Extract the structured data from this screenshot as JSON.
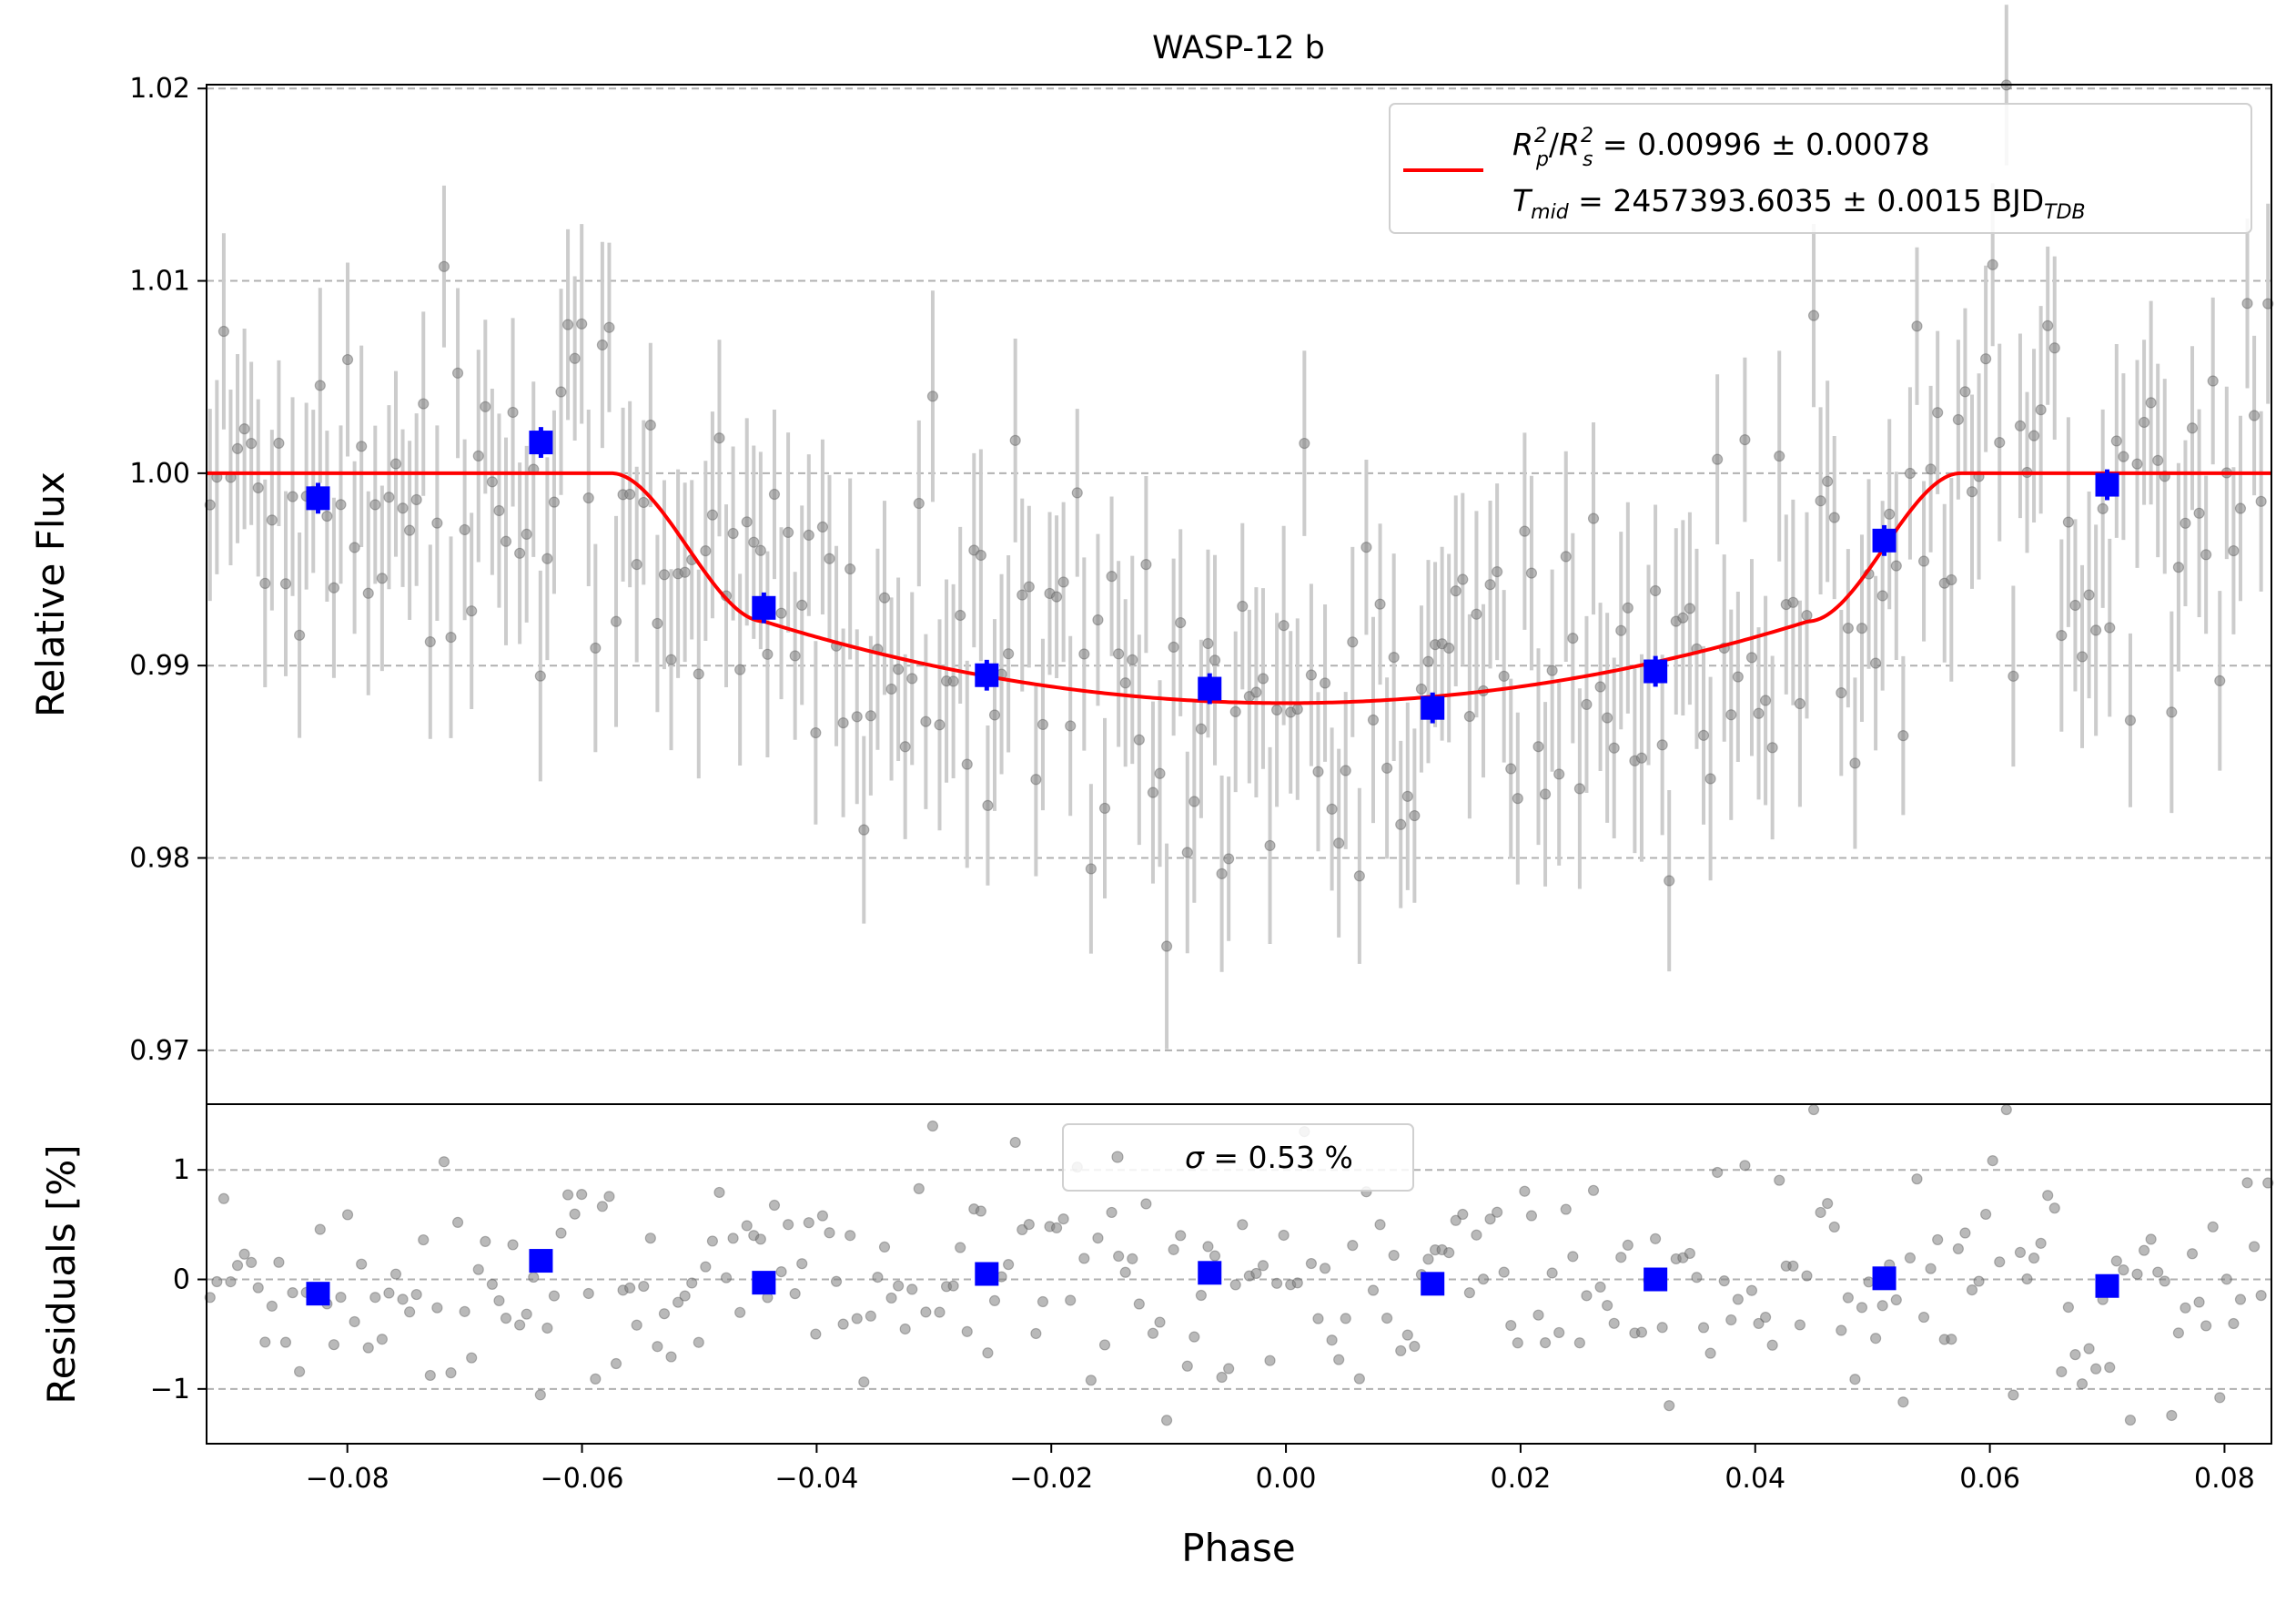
{
  "chart_data": [
    {
      "type": "scatter",
      "panel": "top",
      "title": "WASP-12 b",
      "xlabel": "",
      "ylabel": "Relative Flux",
      "xlim": [
        -0.092,
        0.084
      ],
      "ylim": [
        0.9672,
        1.0202
      ],
      "x_ticks": [],
      "y_ticks": [
        0.97,
        0.98,
        0.99,
        1.0,
        1.01,
        1.02
      ],
      "y_tick_labels": [
        "0.97",
        "0.98",
        "0.99",
        "1.00",
        "1.01",
        "1.02"
      ],
      "grid": "y-dashed",
      "legend_position": "top-right",
      "legend": {
        "line1": {
          "r": "R",
          "p_sub": "p",
          "sup": "2",
          "slash": "/",
          "s_sub": "s",
          "eq": " = 0.00996 ± 0.00078"
        },
        "line2": {
          "t": "T",
          "mid_sub": "mid",
          "eq": " = 2457393.6035 ± 0.0015 BJD",
          "tdb_sub": "TDB"
        }
      },
      "model": {
        "name": "",
        "color": "#ff0000",
        "depth": 0.00996,
        "t14": 0.0575,
        "t12": 0.013,
        "bottom": 0.98805,
        "ingress_flux": 0.9923
      },
      "binned": {
        "color": "#0000ff",
        "x": [
          -0.0825,
          -0.0635,
          -0.0445,
          -0.0255,
          -0.0065,
          0.0125,
          0.0315,
          0.051,
          0.07
        ],
        "y": [
          0.9987,
          1.0016,
          0.993,
          0.9895,
          0.9888,
          0.9878,
          0.9897,
          0.9965,
          0.9994
        ],
        "yerr": [
          0.0008,
          0.0008,
          0.0008,
          0.0008,
          0.0008,
          0.0008,
          0.0008,
          0.0008,
          0.0008
        ]
      },
      "raw": {
        "color": "#808080",
        "errbar_color": "#cccccc",
        "n_points": 300,
        "typical_yerr": 0.0048,
        "scatter_sigma_pct": 0.53
      }
    },
    {
      "type": "scatter",
      "panel": "bottom",
      "xlabel": "Phase",
      "ylabel": "Residuals [%]",
      "xlim": [
        -0.092,
        0.084
      ],
      "ylim": [
        -1.5,
        1.6
      ],
      "x_ticks": [
        -0.08,
        -0.06,
        -0.04,
        -0.02,
        0.0,
        0.02,
        0.04,
        0.06,
        0.08
      ],
      "x_tick_labels": [
        "−0.08",
        "−0.06",
        "−0.04",
        "−0.02",
        "0.00",
        "0.02",
        "0.04",
        "0.06",
        "0.08"
      ],
      "y_ticks": [
        -1,
        0,
        1
      ],
      "y_tick_labels": [
        "−1",
        "0",
        "1"
      ],
      "grid": "y-dashed",
      "legend_position": "top-center",
      "legend": {
        "sigma": "σ",
        "eq": " = 0.53 %"
      },
      "binned": {
        "color": "#0000ff",
        "x": [
          -0.0825,
          -0.0635,
          -0.0445,
          -0.0255,
          -0.0065,
          0.0125,
          0.0315,
          0.051,
          0.07
        ],
        "y": [
          -0.13,
          0.17,
          -0.03,
          0.05,
          0.06,
          -0.04,
          0.0,
          0.01,
          -0.06
        ]
      }
    }
  ]
}
